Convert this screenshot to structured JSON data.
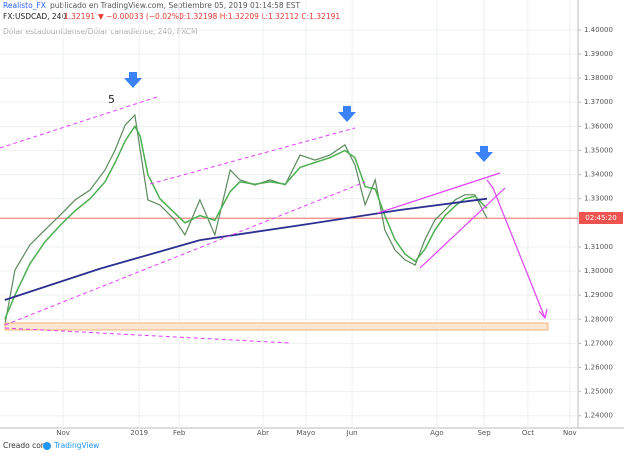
{
  "header": {
    "author": "Realisto_FX",
    "published": "publicado en TradingView.com, Septiembre 05, 2019 01:14:58 EST"
  },
  "ticker": {
    "symbol": "FX:USDCAD, 240",
    "last": "1.32191",
    "change": "▼ −0.00033 (−0.02%)",
    "ohlc": "O:1.32198 H:1.32209 L:1.32112 C:1.32191"
  },
  "footer": {
    "prefix": "Creado con",
    "brand": "TradingView"
  },
  "chart_data": {
    "type": "line",
    "watermark": "Dólar estadounidense/Dólar canadiense, 240, FXCM",
    "annotation": "5",
    "countdown": "02:45:20",
    "price_line": 1.32191,
    "xlim": [
      0,
      120
    ],
    "xticks": [
      {
        "value": 13.1,
        "label": "Nov"
      },
      {
        "value": 28.9,
        "label": "2019"
      },
      {
        "value": 37.2,
        "label": "Feb"
      },
      {
        "value": 54.6,
        "label": "Abr"
      },
      {
        "value": 63.5,
        "label": "Mayo"
      },
      {
        "value": 73.1,
        "label": "Jun"
      },
      {
        "value": 90.7,
        "label": "Ago"
      },
      {
        "value": 100.5,
        "label": "Sep"
      },
      {
        "value": 109.6,
        "label": "Oct"
      },
      {
        "value": 118.3,
        "label": "Nov"
      }
    ],
    "ylim": [
      1.2349,
      1.4124
    ],
    "yticks": [
      {
        "value": 1.4,
        "label": "1.40000"
      },
      {
        "value": 1.39,
        "label": "1.39000"
      },
      {
        "value": 1.38,
        "label": "1.38000"
      },
      {
        "value": 1.37,
        "label": "1.37000"
      },
      {
        "value": 1.36,
        "label": "1.36000"
      },
      {
        "value": 1.35,
        "label": "1.35000"
      },
      {
        "value": 1.34,
        "label": "1.34000"
      },
      {
        "value": 1.33,
        "label": "1.33000"
      },
      {
        "value": 1.31,
        "label": "1.31000"
      },
      {
        "value": 1.3,
        "label": "1.30000"
      },
      {
        "value": 1.29,
        "label": "1.29000"
      },
      {
        "value": 1.28,
        "label": "1.28000"
      },
      {
        "value": 1.27,
        "label": "1.27000"
      },
      {
        "value": 1.26,
        "label": "1.26000"
      },
      {
        "value": 1.25,
        "label": "1.25000"
      },
      {
        "value": 1.24,
        "label": "1.24000"
      }
    ],
    "grid": true,
    "series": [
      {
        "color": "#5d8a5e",
        "width": 1.2,
        "x": [
          1.0,
          3.1,
          6.2,
          9.3,
          12.5,
          15.6,
          18.7,
          21.8,
          23.9,
          26.0,
          28.0,
          29.1,
          30.7,
          33.2,
          36.3,
          38.4,
          41.5,
          44.6,
          47.8,
          49.8,
          52.9,
          56.1,
          59.2,
          62.3,
          65.4,
          68.5,
          71.6,
          73.7,
          75.8,
          77.9,
          79.9,
          82.0,
          84.1,
          86.2,
          88.2,
          90.3,
          92.4,
          94.5,
          96.5,
          98.6,
          101.1
        ],
        "values": [
          1.2776,
          1.3004,
          1.3108,
          1.317,
          1.3232,
          1.3295,
          1.3336,
          1.3419,
          1.3502,
          1.3606,
          1.3647,
          1.3502,
          1.3295,
          1.3274,
          1.3212,
          1.315,
          1.3295,
          1.315,
          1.3419,
          1.3378,
          1.3357,
          1.3378,
          1.3357,
          1.3481,
          1.346,
          1.3481,
          1.3523,
          1.344,
          1.3274,
          1.3378,
          1.317,
          1.3087,
          1.3046,
          1.3025,
          1.3129,
          1.3212,
          1.3253,
          1.3295,
          1.3316,
          1.3316,
          1.3219
        ]
      },
      {
        "color": "#4caf50",
        "width": 1.5,
        "x": [
          1.0,
          3.1,
          6.2,
          9.3,
          12.5,
          15.6,
          18.7,
          21.8,
          23.9,
          26.0,
          28.0,
          29.1,
          30.7,
          33.2,
          36.3,
          38.4,
          41.5,
          44.6,
          47.8,
          49.8,
          52.9,
          56.1,
          59.2,
          62.3,
          65.4,
          68.5,
          71.6,
          73.7,
          75.8,
          77.9,
          79.9,
          82.0,
          84.1,
          86.2,
          88.2,
          90.3,
          92.4,
          94.5,
          96.5,
          98.6,
          101.1
        ],
        "values": [
          1.28,
          1.29,
          1.303,
          1.312,
          1.319,
          1.325,
          1.33,
          1.337,
          1.345,
          1.354,
          1.36,
          1.356,
          1.34,
          1.33,
          1.324,
          1.32,
          1.323,
          1.321,
          1.333,
          1.337,
          1.336,
          1.337,
          1.336,
          1.343,
          1.345,
          1.347,
          1.35,
          1.347,
          1.335,
          1.334,
          1.323,
          1.313,
          1.307,
          1.304,
          1.309,
          1.317,
          1.323,
          1.327,
          1.33,
          1.331,
          1.326
        ]
      },
      {
        "color": "#2b2f8f",
        "width": 1.8,
        "x": [
          1.0,
          20.8,
          41.5,
          62.3,
          83.0,
          101.1
        ],
        "values": [
          1.288,
          1.301,
          1.3128,
          1.319,
          1.3253,
          1.33
        ]
      }
    ]
  }
}
